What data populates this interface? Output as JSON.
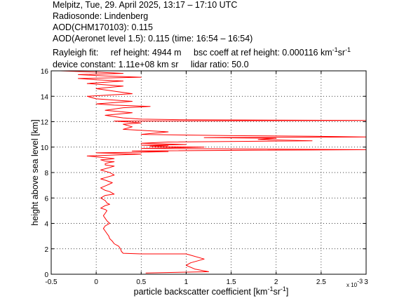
{
  "header": {
    "line1": "Melpitz, Tue, 29. April 2025, 13:17 – 17:10 UTC",
    "line2": "Radiosonde: Lindenberg",
    "line3": "AOD(CHM170103): 0.115",
    "line4": "AOD(Aeronet level 1.5): 0.115   (time: 16:54 – 16:54)",
    "rayleigh_fit": "Rayleigh fit:",
    "ref_height": "ref height: 4944 m",
    "bsc_coeff_prefix": "bsc coeff at ref height: 0.000116 km",
    "bsc_coeff_exp1": "-1",
    "bsc_coeff_mid": "sr",
    "bsc_coeff_exp2": "-1",
    "device_constant": "device constant: 1.11e+08 km sr",
    "lidar_ratio": "lidar ratio: 50.0"
  },
  "axes": {
    "ylabel": "height above sea level [km]",
    "xlabel_prefix": "particle backscatter coefficient [km",
    "xlabel_exp1": "-1",
    "xlabel_mid": "sr",
    "xlabel_exp2": "-1",
    "xlabel_suffix": "]",
    "x_multiplier": "x 10",
    "x_multiplier_exp": "-3"
  },
  "chart_data": {
    "type": "line",
    "title": "",
    "xlabel": "particle backscatter coefficient [km-1 sr-1]",
    "ylabel": "height above sea level [km]",
    "x_scale_note": "x 10^-3",
    "xlim": [
      -0.5,
      3
    ],
    "ylim": [
      0,
      16
    ],
    "xticks": [
      -0.5,
      0,
      0.5,
      1,
      1.5,
      2,
      2.5,
      3
    ],
    "xtick_labels": [
      "-0.5",
      "0",
      "0.5",
      "1",
      "1.5",
      "2",
      "2.5",
      "3"
    ],
    "yticks": [
      0,
      2,
      4,
      6,
      8,
      10,
      12,
      14,
      16
    ],
    "ytick_labels": [
      "0",
      "2",
      "4",
      "6",
      "8",
      "10",
      "12",
      "14",
      "16"
    ],
    "grid": true,
    "series_color": "#ff0000",
    "series": [
      {
        "name": "",
        "x": [
          0.55,
          1.25,
          1.1,
          1.0,
          1.05,
          1.2,
          1.0,
          0.5,
          0.3,
          0.28,
          0.27,
          0.25,
          0.2,
          0.18,
          0.15,
          0.14,
          0.12,
          0.1,
          0.08,
          0.1,
          0.15,
          0.12,
          0.1,
          0.08,
          0.1,
          0.12,
          0.1,
          0.05,
          0.1,
          0.15,
          0.12,
          0.1,
          0.05,
          0.1,
          0.2,
          0.15,
          0.1,
          0.05,
          0.12,
          0.18,
          0.1,
          0.05,
          0.1,
          0.2,
          0.15,
          0.1,
          0.05,
          0.15,
          0.2,
          0.1,
          0.1,
          0.15,
          0.2,
          0.1,
          0.05,
          0.15,
          0.2,
          0.05,
          -0.1,
          0.1,
          0.3,
          0.5,
          0.2,
          0.0,
          0.5,
          0.8,
          0.4,
          3.0,
          0.5,
          0.8,
          1.2,
          0.6,
          0.8,
          0.5,
          1.0,
          0.5,
          0.8,
          2.4,
          1.8,
          2.0,
          1.2,
          3.0,
          2.4,
          1.5,
          0.5,
          0.8,
          0.3,
          0.4,
          0.3,
          0.5,
          0.3,
          0.2,
          3.0,
          1.0,
          0.5,
          0.3,
          0.1,
          0.4,
          0.1,
          0.3,
          0.6,
          0.2,
          0.0,
          0.4,
          0.0,
          -0.1,
          0.4,
          0.2,
          0.0,
          0.3,
          -0.1,
          0.3,
          0.0,
          -0.2,
          0.5,
          0.1,
          -0.2,
          0.3,
          0.0,
          -0.4,
          0.2,
          0.1
        ],
        "y": [
          0.1,
          0.2,
          0.4,
          0.7,
          0.9,
          1.2,
          1.6,
          1.6,
          1.65,
          1.8,
          2.0,
          2.2,
          2.4,
          2.6,
          2.8,
          3.0,
          3.2,
          3.4,
          3.6,
          3.8,
          4.0,
          4.2,
          4.4,
          4.6,
          4.8,
          5.0,
          5.1,
          5.2,
          5.4,
          5.5,
          5.6,
          5.8,
          6.0,
          6.2,
          6.3,
          6.5,
          6.6,
          6.8,
          7.0,
          7.2,
          7.4,
          7.5,
          7.6,
          7.8,
          8.0,
          8.1,
          8.2,
          8.4,
          8.5,
          8.6,
          8.7,
          8.8,
          8.85,
          8.9,
          9.0,
          9.05,
          9.1,
          9.2,
          9.3,
          9.35,
          9.4,
          9.45,
          9.5,
          9.55,
          9.6,
          9.65,
          9.7,
          9.8,
          9.9,
          9.95,
          10.0,
          10.05,
          10.1,
          10.15,
          10.2,
          10.3,
          10.4,
          10.5,
          10.6,
          10.7,
          10.75,
          10.8,
          10.85,
          10.9,
          11.0,
          11.2,
          11.4,
          11.6,
          11.8,
          11.9,
          12.0,
          12.05,
          12.1,
          12.15,
          12.2,
          12.3,
          12.5,
          12.7,
          12.9,
          13.1,
          13.2,
          13.3,
          13.4,
          13.6,
          13.8,
          14.0,
          14.2,
          14.4,
          14.6,
          14.8,
          15.0,
          15.2,
          15.3,
          15.4,
          15.5,
          15.6,
          15.7,
          15.8,
          15.9,
          16.0,
          16.05,
          16.1
        ]
      }
    ]
  }
}
